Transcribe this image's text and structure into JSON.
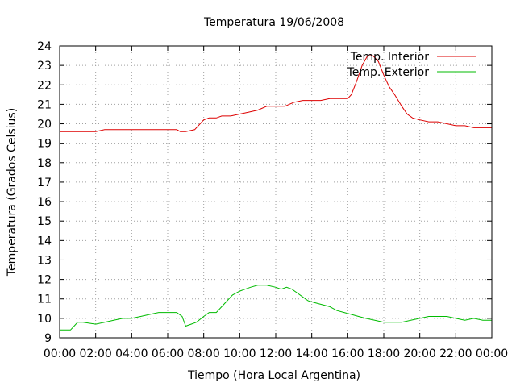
{
  "chart_data": {
    "type": "line",
    "title": "Temperatura 19/06/2008",
    "xlabel": "Tiempo (Hora Local Argentina)",
    "ylabel": "Temperatura (Grados Celsius)",
    "xlim": [
      0,
      24
    ],
    "ylim": [
      9,
      24
    ],
    "x_ticks": [
      0,
      2,
      4,
      6,
      8,
      10,
      12,
      14,
      16,
      18,
      20,
      22,
      24
    ],
    "x_tick_labels": [
      "00:00",
      "02:00",
      "04:00",
      "06:00",
      "08:00",
      "10:00",
      "12:00",
      "14:00",
      "16:00",
      "18:00",
      "20:00",
      "22:00",
      "00:00"
    ],
    "y_ticks": [
      9,
      10,
      11,
      12,
      13,
      14,
      15,
      16,
      17,
      18,
      19,
      20,
      21,
      22,
      23,
      24
    ],
    "grid": true,
    "legend_position": "top-right",
    "series": [
      {
        "name": "Temp. Interior",
        "color": "#dd0000",
        "x": [
          0,
          1,
          2,
          2.5,
          3,
          4,
          5,
          6,
          6.5,
          6.7,
          7,
          7.5,
          7.8,
          8,
          8.3,
          8.7,
          9,
          9.5,
          10,
          10.5,
          11,
          11.5,
          12,
          12.5,
          13,
          13.5,
          14,
          14.5,
          15,
          15.5,
          16,
          16.2,
          16.5,
          16.8,
          17.1,
          17.4,
          17.7,
          18,
          18.3,
          18.6,
          19,
          19.3,
          19.6,
          20,
          20.5,
          21,
          21.5,
          22,
          22.5,
          23,
          23.5,
          24
        ],
        "values": [
          19.6,
          19.6,
          19.6,
          19.7,
          19.7,
          19.7,
          19.7,
          19.7,
          19.7,
          19.6,
          19.6,
          19.7,
          20.0,
          20.2,
          20.3,
          20.3,
          20.4,
          20.4,
          20.5,
          20.6,
          20.7,
          20.9,
          20.9,
          20.9,
          21.1,
          21.2,
          21.2,
          21.2,
          21.3,
          21.3,
          21.3,
          21.5,
          22.2,
          23.0,
          23.5,
          23.5,
          23.2,
          22.5,
          21.9,
          21.5,
          20.9,
          20.5,
          20.3,
          20.2,
          20.1,
          20.1,
          20.0,
          19.9,
          19.9,
          19.8,
          19.8,
          19.8
        ]
      },
      {
        "name": "Temp. Exterior",
        "color": "#00bb00",
        "x": [
          0,
          0.6,
          0.8,
          1,
          1.3,
          2,
          2.5,
          3,
          3.5,
          4,
          4.5,
          5,
          5.5,
          6,
          6.5,
          6.8,
          7,
          7.3,
          7.6,
          8,
          8.3,
          8.7,
          9,
          9.3,
          9.6,
          10,
          10.3,
          10.6,
          11,
          11.5,
          12,
          12.3,
          12.6,
          12.9,
          13.2,
          13.5,
          13.8,
          14.2,
          14.6,
          15,
          15.4,
          15.8,
          16.2,
          16.6,
          17,
          17.5,
          18,
          18.5,
          19,
          19.5,
          20,
          20.5,
          21,
          21.5,
          22,
          22.5,
          23,
          23.5,
          24
        ],
        "values": [
          9.4,
          9.4,
          9.6,
          9.8,
          9.8,
          9.7,
          9.8,
          9.9,
          10.0,
          10.0,
          10.1,
          10.2,
          10.3,
          10.3,
          10.3,
          10.1,
          9.6,
          9.7,
          9.8,
          10.1,
          10.3,
          10.3,
          10.6,
          10.9,
          11.2,
          11.4,
          11.5,
          11.6,
          11.7,
          11.7,
          11.6,
          11.5,
          11.6,
          11.5,
          11.3,
          11.1,
          10.9,
          10.8,
          10.7,
          10.6,
          10.4,
          10.3,
          10.2,
          10.1,
          10.0,
          9.9,
          9.8,
          9.8,
          9.8,
          9.9,
          10.0,
          10.1,
          10.1,
          10.1,
          10.0,
          9.9,
          10.0,
          9.9,
          9.9
        ]
      }
    ]
  }
}
